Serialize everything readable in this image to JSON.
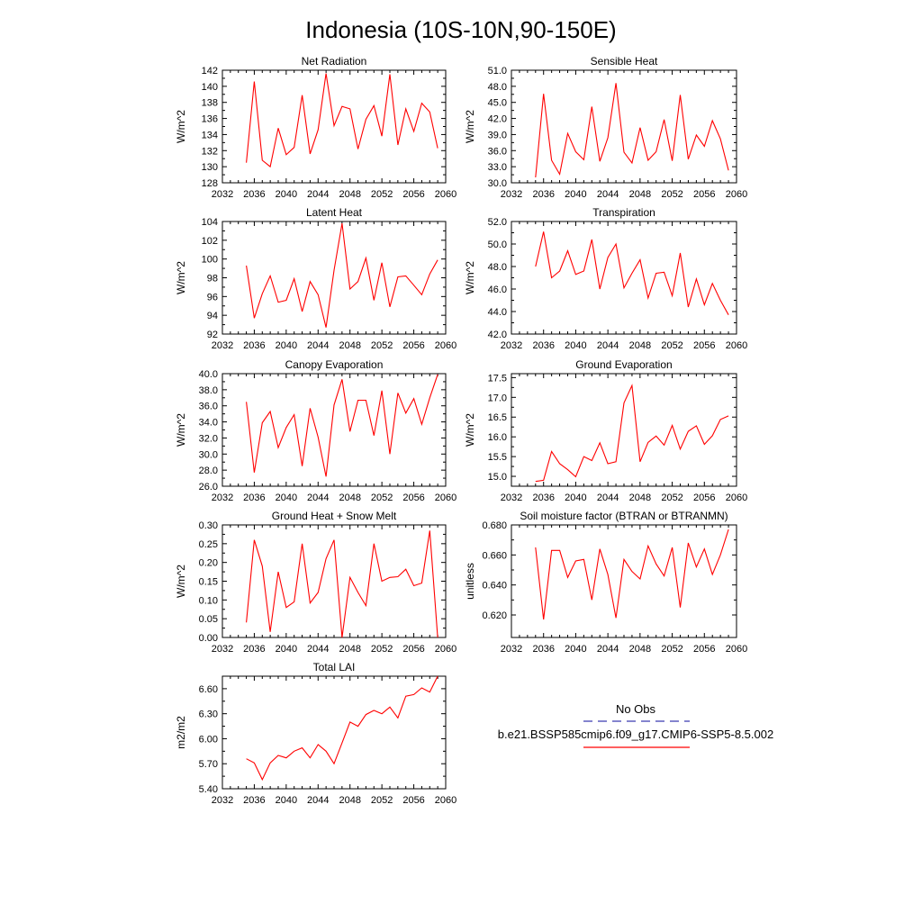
{
  "figure": {
    "title": "Indonesia (10S-10N,90-150E)"
  },
  "legend": {
    "obs_label": "No Obs",
    "obs_color": "#3a3ab0",
    "model_label": "b.e21.BSSP585cmip6.f09_g17.CMIP6-SSP5-8.5.002",
    "model_color": "#ff0000"
  },
  "chart_data": [
    {
      "type": "line",
      "title": "Net Radiation",
      "ylabel": "W/m^2",
      "xlim": [
        2032,
        2060
      ],
      "ylim": [
        128,
        142
      ],
      "xticks": [
        "2032",
        "2036",
        "2040",
        "2044",
        "2048",
        "2052",
        "2056",
        "2060"
      ],
      "yticks": [
        "128",
        "130",
        "132",
        "134",
        "136",
        "138",
        "140",
        "142"
      ],
      "x": [
        2035,
        2036,
        2037,
        2038,
        2039,
        2040,
        2041,
        2042,
        2043,
        2044,
        2045,
        2046,
        2047,
        2048,
        2049,
        2050,
        2051,
        2052,
        2053,
        2054,
        2055,
        2056,
        2057,
        2058,
        2059
      ],
      "series": [
        {
          "color": "#ff0000",
          "values": [
            130.5,
            140.6,
            130.8,
            130.0,
            134.8,
            131.5,
            132.4,
            138.9,
            131.6,
            134.6,
            141.6,
            135.1,
            137.5,
            137.2,
            132.2,
            135.9,
            137.6,
            133.8,
            141.5,
            132.7,
            137.2,
            134.4,
            137.9,
            136.8,
            132.3
          ]
        }
      ]
    },
    {
      "type": "line",
      "title": "Sensible Heat",
      "ylabel": "W/m^2",
      "xlim": [
        2032,
        2060
      ],
      "ylim": [
        30.0,
        51.0
      ],
      "xticks": [
        "2032",
        "2036",
        "2040",
        "2044",
        "2048",
        "2052",
        "2056",
        "2060"
      ],
      "yticks": [
        "30.0",
        "33.0",
        "36.0",
        "39.0",
        "42.0",
        "45.0",
        "48.0",
        "51.0"
      ],
      "x": [
        2035,
        2036,
        2037,
        2038,
        2039,
        2040,
        2041,
        2042,
        2043,
        2044,
        2045,
        2046,
        2047,
        2048,
        2049,
        2050,
        2051,
        2052,
        2053,
        2054,
        2055,
        2056,
        2057,
        2058,
        2059
      ],
      "series": [
        {
          "color": "#ff0000",
          "values": [
            31.0,
            46.6,
            34.2,
            31.6,
            39.2,
            35.8,
            34.3,
            44.2,
            34.0,
            38.4,
            48.6,
            35.7,
            33.7,
            40.3,
            34.2,
            35.8,
            41.8,
            34.1,
            46.4,
            34.4,
            38.9,
            36.8,
            41.6,
            38.2,
            32.3
          ]
        }
      ]
    },
    {
      "type": "line",
      "title": "Latent Heat",
      "ylabel": "W/m^2",
      "xlim": [
        2032,
        2060
      ],
      "ylim": [
        92,
        104
      ],
      "xticks": [
        "2032",
        "2036",
        "2040",
        "2044",
        "2048",
        "2052",
        "2056",
        "2060"
      ],
      "yticks": [
        "92",
        "94",
        "96",
        "98",
        "100",
        "102",
        "104"
      ],
      "x": [
        2035,
        2036,
        2037,
        2038,
        2039,
        2040,
        2041,
        2042,
        2043,
        2044,
        2045,
        2046,
        2047,
        2048,
        2049,
        2050,
        2051,
        2052,
        2053,
        2054,
        2055,
        2056,
        2057,
        2058,
        2059
      ],
      "series": [
        {
          "color": "#ff0000",
          "values": [
            99.3,
            93.7,
            96.3,
            98.2,
            95.4,
            95.6,
            97.9,
            94.4,
            97.6,
            96.2,
            92.7,
            98.8,
            103.8,
            96.8,
            97.6,
            100.1,
            95.6,
            99.6,
            94.9,
            98.1,
            98.2,
            97.2,
            96.2,
            98.4,
            99.9
          ]
        }
      ]
    },
    {
      "type": "line",
      "title": "Transpiration",
      "ylabel": "W/m^2",
      "xlim": [
        2032,
        2060
      ],
      "ylim": [
        42.0,
        52.0
      ],
      "xticks": [
        "2032",
        "2036",
        "2040",
        "2044",
        "2048",
        "2052",
        "2056",
        "2060"
      ],
      "yticks": [
        "42.0",
        "44.0",
        "46.0",
        "48.0",
        "50.0",
        "52.0"
      ],
      "x": [
        2035,
        2036,
        2037,
        2038,
        2039,
        2040,
        2041,
        2042,
        2043,
        2044,
        2045,
        2046,
        2047,
        2048,
        2049,
        2050,
        2051,
        2052,
        2053,
        2054,
        2055,
        2056,
        2057,
        2058,
        2059
      ],
      "series": [
        {
          "color": "#ff0000",
          "values": [
            48.0,
            51.1,
            47.0,
            47.6,
            49.4,
            47.3,
            47.6,
            50.4,
            46.0,
            48.8,
            50.0,
            46.1,
            47.4,
            48.6,
            45.2,
            47.4,
            47.5,
            45.4,
            49.2,
            44.4,
            46.9,
            44.6,
            46.5,
            45.0,
            43.7
          ]
        }
      ]
    },
    {
      "type": "line",
      "title": "Canopy Evaporation",
      "ylabel": "W/m^2",
      "xlim": [
        2032,
        2060
      ],
      "ylim": [
        26.0,
        40.0
      ],
      "xticks": [
        "2032",
        "2036",
        "2040",
        "2044",
        "2048",
        "2052",
        "2056",
        "2060"
      ],
      "yticks": [
        "26.0",
        "28.0",
        "30.0",
        "32.0",
        "34.0",
        "36.0",
        "38.0",
        "40.0"
      ],
      "x": [
        2035,
        2036,
        2037,
        2038,
        2039,
        2040,
        2041,
        2042,
        2043,
        2044,
        2045,
        2046,
        2047,
        2048,
        2049,
        2050,
        2051,
        2052,
        2053,
        2054,
        2055,
        2056,
        2057,
        2058,
        2059
      ],
      "series": [
        {
          "color": "#ff0000",
          "values": [
            36.5,
            27.7,
            33.9,
            35.3,
            30.8,
            33.3,
            34.9,
            28.5,
            35.7,
            32.1,
            27.2,
            36.1,
            39.3,
            32.8,
            36.7,
            36.7,
            32.3,
            37.9,
            30.0,
            37.6,
            35.1,
            36.9,
            33.7,
            37.0,
            39.9
          ]
        }
      ]
    },
    {
      "type": "line",
      "title": "Ground Evaporation",
      "ylabel": "W/m^2",
      "xlim": [
        2032,
        2060
      ],
      "ylim": [
        14.75,
        17.6
      ],
      "xticks": [
        "2032",
        "2036",
        "2040",
        "2044",
        "2048",
        "2052",
        "2056",
        "2060"
      ],
      "yticks": [
        "15.0",
        "15.5",
        "16.0",
        "16.5",
        "17.0",
        "17.5"
      ],
      "x": [
        2035,
        2036,
        2037,
        2038,
        2039,
        2040,
        2041,
        2042,
        2043,
        2044,
        2045,
        2046,
        2047,
        2048,
        2049,
        2050,
        2051,
        2052,
        2053,
        2054,
        2055,
        2056,
        2057,
        2058,
        2059
      ],
      "series": [
        {
          "color": "#ff0000",
          "values": [
            14.87,
            14.9,
            15.63,
            15.32,
            15.17,
            14.99,
            15.5,
            15.4,
            15.85,
            15.32,
            15.37,
            16.86,
            17.3,
            15.37,
            15.86,
            16.02,
            15.79,
            16.29,
            15.69,
            16.14,
            16.28,
            15.81,
            16.03,
            16.44,
            16.53
          ]
        }
      ]
    },
    {
      "type": "line",
      "title": "Ground Heat + Snow Melt",
      "ylabel": "W/m^2",
      "xlim": [
        2032,
        2060
      ],
      "ylim": [
        0.0,
        0.3
      ],
      "xticks": [
        "2032",
        "2036",
        "2040",
        "2044",
        "2048",
        "2052",
        "2056",
        "2060"
      ],
      "yticks": [
        "0.00",
        "0.05",
        "0.10",
        "0.15",
        "0.20",
        "0.25",
        "0.30"
      ],
      "x": [
        2035,
        2036,
        2037,
        2038,
        2039,
        2040,
        2041,
        2042,
        2043,
        2044,
        2045,
        2046,
        2047,
        2048,
        2049,
        2050,
        2051,
        2052,
        2053,
        2054,
        2055,
        2056,
        2057,
        2058,
        2059
      ],
      "series": [
        {
          "color": "#ff0000",
          "values": [
            0.04,
            0.26,
            0.19,
            0.015,
            0.175,
            0.08,
            0.095,
            0.25,
            0.092,
            0.12,
            0.21,
            0.26,
            0.0,
            0.16,
            0.12,
            0.085,
            0.25,
            0.15,
            0.16,
            0.162,
            0.182,
            0.138,
            0.145,
            0.285,
            0.0
          ]
        }
      ]
    },
    {
      "type": "line",
      "title": "Soil moisture factor (BTRAN or BTRANMN)",
      "ylabel": "unitless",
      "xlim": [
        2032,
        2060
      ],
      "ylim": [
        0.605,
        0.68
      ],
      "xticks": [
        "2032",
        "2036",
        "2040",
        "2044",
        "2048",
        "2052",
        "2056",
        "2060"
      ],
      "yticks": [
        "0.620",
        "0.640",
        "0.660",
        "0.680"
      ],
      "x": [
        2035,
        2036,
        2037,
        2038,
        2039,
        2040,
        2041,
        2042,
        2043,
        2044,
        2045,
        2046,
        2047,
        2048,
        2049,
        2050,
        2051,
        2052,
        2053,
        2054,
        2055,
        2056,
        2057,
        2058,
        2059
      ],
      "series": [
        {
          "color": "#ff0000",
          "values": [
            0.665,
            0.617,
            0.663,
            0.663,
            0.645,
            0.656,
            0.657,
            0.63,
            0.664,
            0.647,
            0.618,
            0.657,
            0.649,
            0.644,
            0.666,
            0.654,
            0.646,
            0.665,
            0.625,
            0.668,
            0.652,
            0.664,
            0.647,
            0.66,
            0.677
          ]
        }
      ]
    },
    {
      "type": "line",
      "title": "Total LAI",
      "ylabel": "m2/m2",
      "xlim": [
        2032,
        2060
      ],
      "ylim": [
        5.4,
        6.75
      ],
      "xticks": [
        "2032",
        "2036",
        "2040",
        "2044",
        "2048",
        "2052",
        "2056",
        "2060"
      ],
      "yticks": [
        "5.40",
        "5.70",
        "6.00",
        "6.30",
        "6.60"
      ],
      "x": [
        2035,
        2036,
        2037,
        2038,
        2039,
        2040,
        2041,
        2042,
        2043,
        2044,
        2045,
        2046,
        2047,
        2048,
        2049,
        2050,
        2051,
        2052,
        2053,
        2054,
        2055,
        2056,
        2057,
        2058,
        2059
      ],
      "series": [
        {
          "color": "#ff0000",
          "values": [
            5.76,
            5.71,
            5.51,
            5.71,
            5.8,
            5.77,
            5.85,
            5.89,
            5.77,
            5.93,
            5.85,
            5.7,
            5.95,
            6.2,
            6.15,
            6.29,
            6.34,
            6.3,
            6.38,
            6.25,
            6.51,
            6.53,
            6.61,
            6.56,
            6.75
          ]
        }
      ]
    }
  ]
}
